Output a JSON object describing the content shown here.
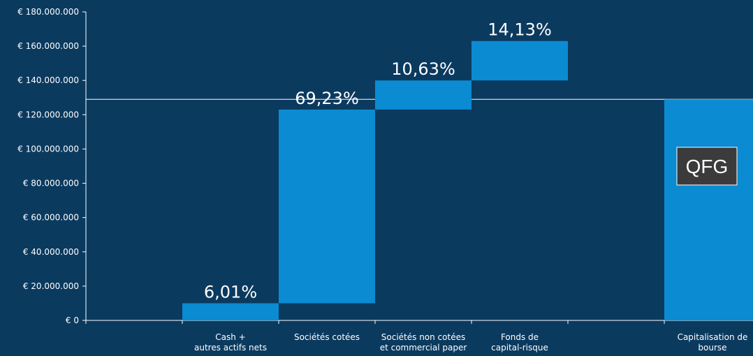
{
  "chart_data": {
    "type": "bar",
    "subtype": "waterfall",
    "ylim": [
      0,
      180000000
    ],
    "y_ticks": [
      0,
      20000000,
      40000000,
      60000000,
      80000000,
      100000000,
      120000000,
      140000000,
      160000000,
      180000000
    ],
    "y_tick_labels": [
      "€ 0",
      "€ 20.000.000",
      "€ 40.000.000",
      "€ 60.000.000",
      "€ 80.000.000",
      "€ 100.000.000",
      "€ 120.000.000",
      "€ 140.000.000",
      "€ 160.000.000",
      "€ 180.000.000"
    ],
    "grid": false,
    "reference_line": 129000000,
    "categories": [
      {
        "lines": [
          "Cash +",
          "autres actifs nets"
        ],
        "start": 0,
        "end": 10000000,
        "label": "6,01%"
      },
      {
        "lines": [
          "Sociétés cotées"
        ],
        "start": 10000000,
        "end": 123000000,
        "label": "69,23%"
      },
      {
        "lines": [
          "Sociétés non cotées",
          "et commercial paper"
        ],
        "start": 123000000,
        "end": 140000000,
        "label": "10,63%"
      },
      {
        "lines": [
          "Fonds de",
          "capital-risque"
        ],
        "start": 140000000,
        "end": 163000000,
        "label": "14,13%"
      },
      {
        "lines": [
          ""
        ],
        "start": null,
        "end": null,
        "label": ""
      },
      {
        "lines": [
          "Capitalisation de",
          "bourse"
        ],
        "start": 0,
        "end": 129000000,
        "label": ""
      }
    ],
    "annotation": {
      "text": "QFG",
      "category_index": 5,
      "value": 90000000
    }
  },
  "colors": {
    "background": "#0b3a5f",
    "bar": "#0b8bd1",
    "axis": "#ffffff",
    "text": "#ffffff",
    "logo_bg": "#3b3b3b"
  }
}
